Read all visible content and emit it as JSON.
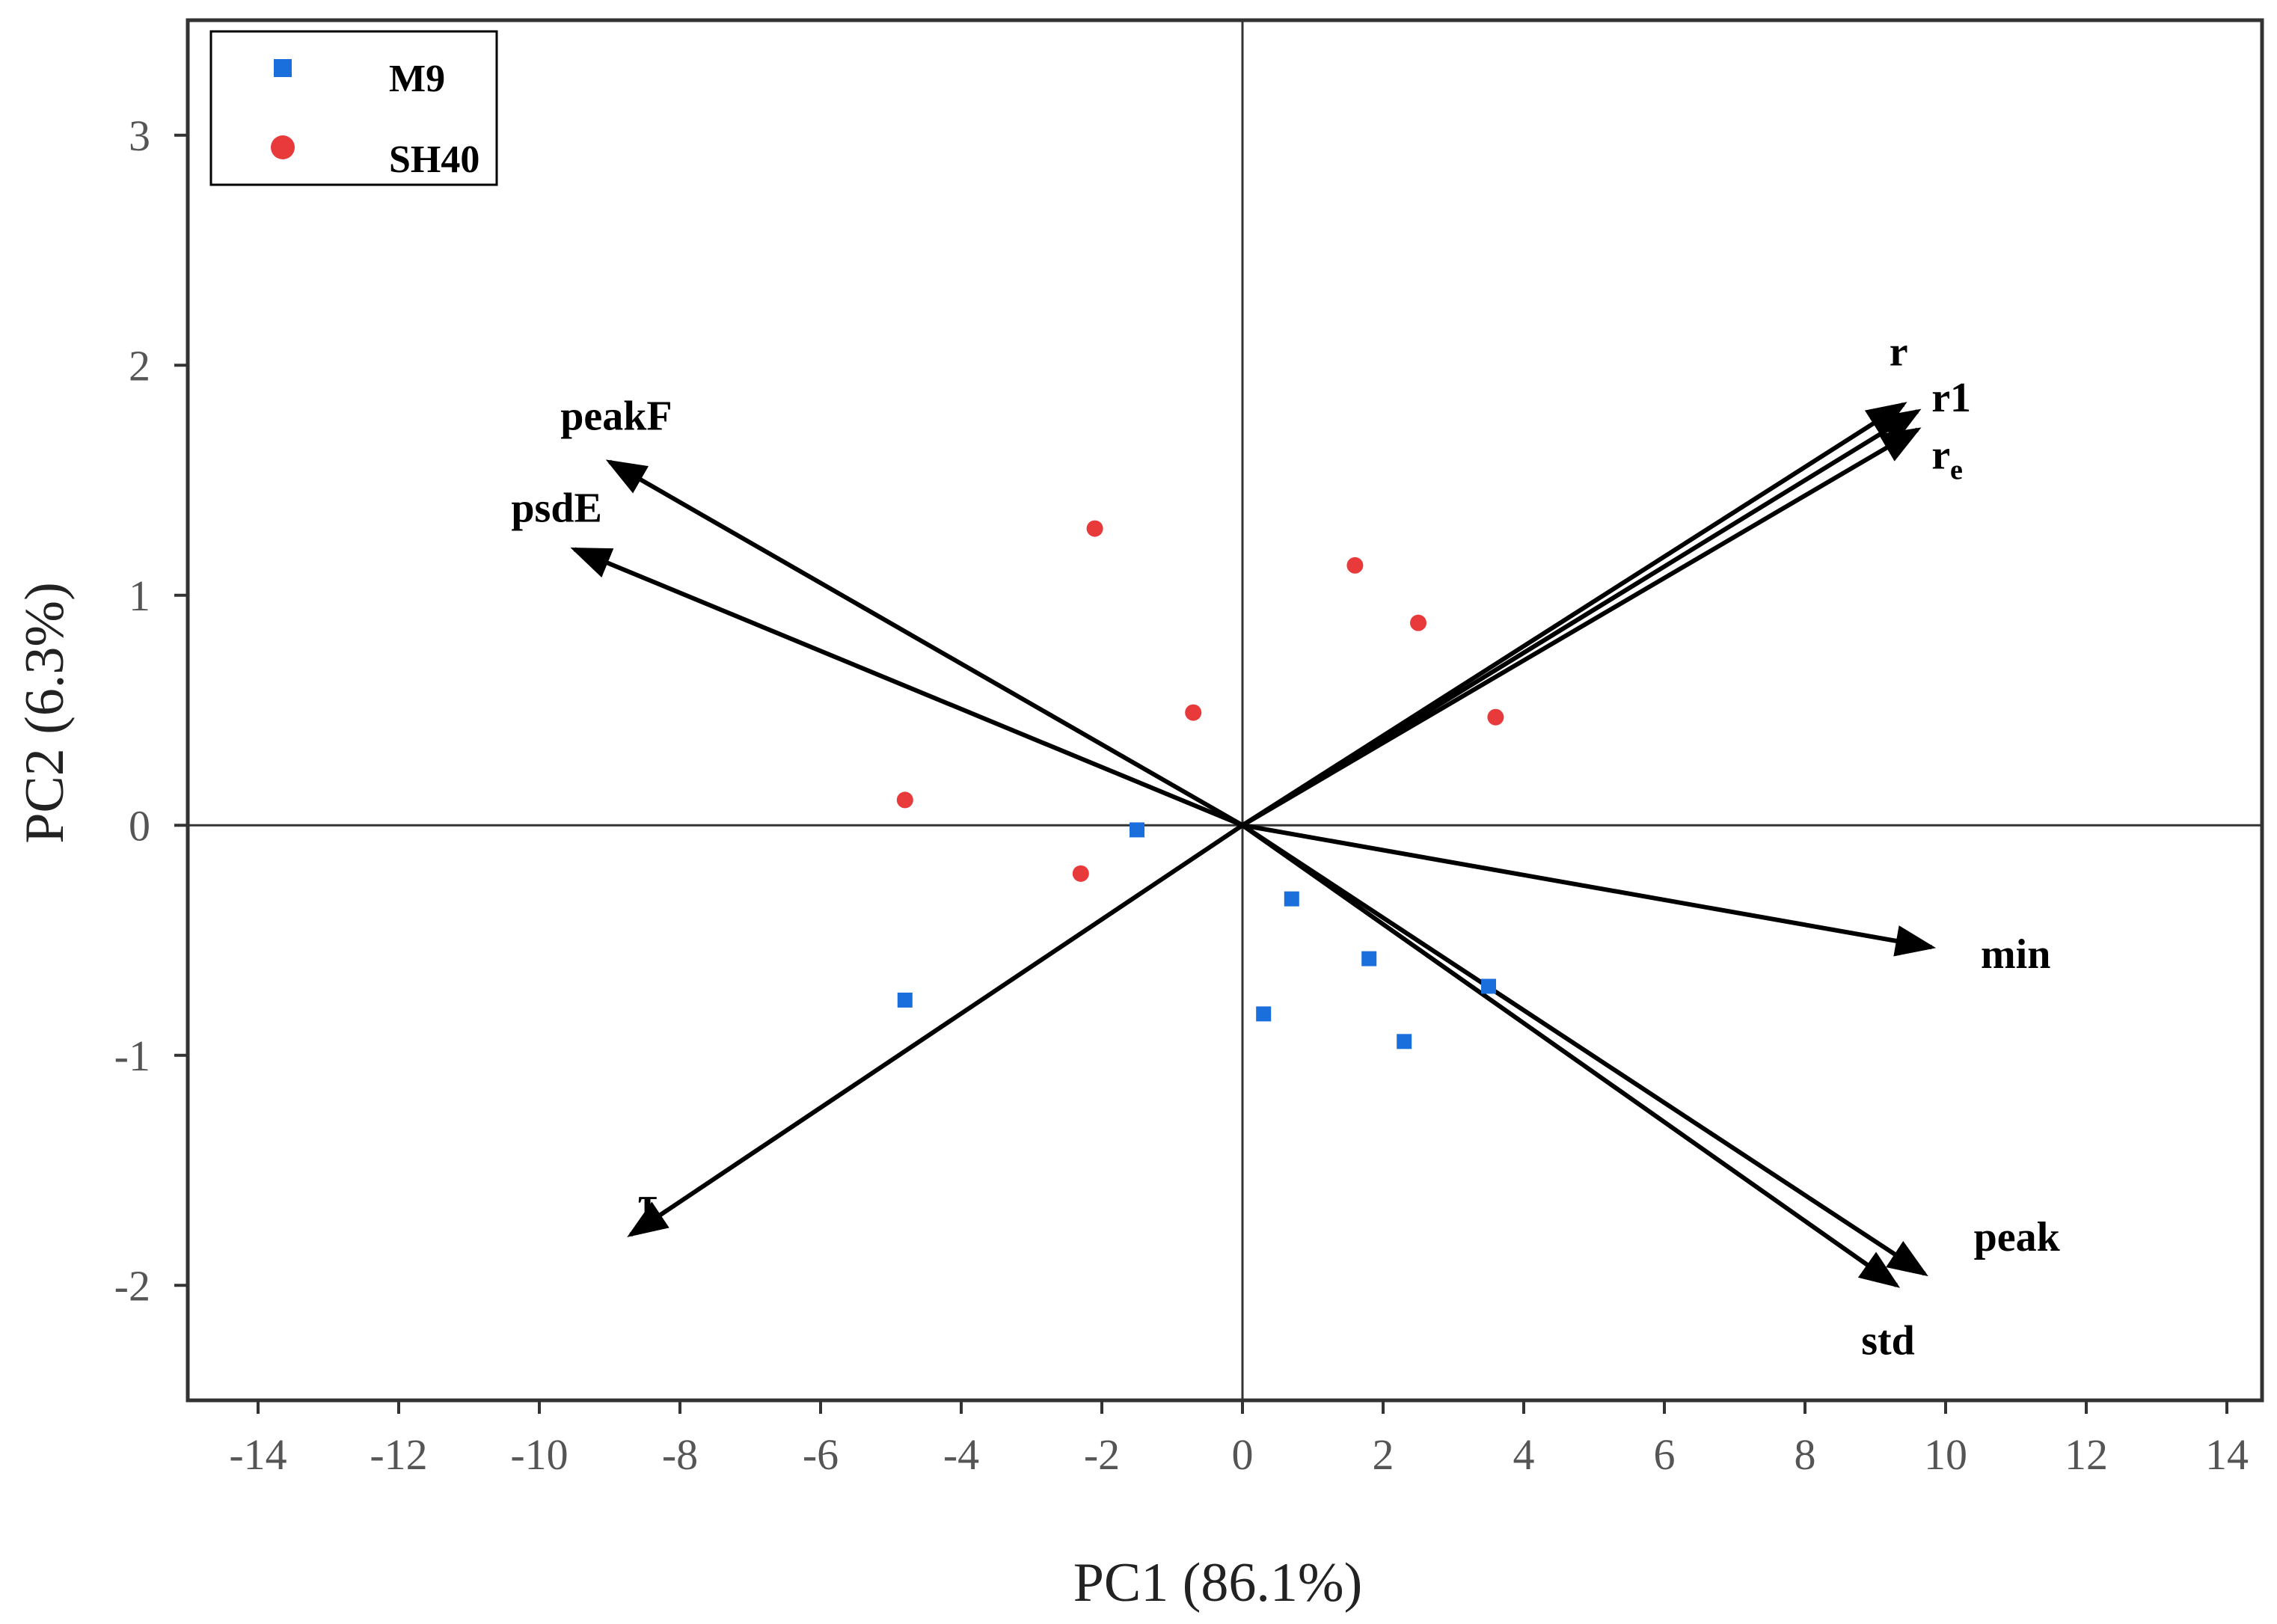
{
  "chart_data": {
    "type": "scatter",
    "subtype": "pca-biplot",
    "xlabel": "PC1 (86.1%)",
    "ylabel": "PC2 (6.3%)",
    "xlim": [
      -15,
      14.5
    ],
    "ylim": [
      -2.5,
      3.5
    ],
    "xticks": [
      -14,
      -12,
      -10,
      -8,
      -6,
      -4,
      -2,
      0,
      2,
      4,
      6,
      8,
      10,
      12,
      14
    ],
    "yticks": [
      -2,
      -1,
      0,
      1,
      2,
      3
    ],
    "legend_position": "top-left",
    "reference_lines": {
      "x": 0,
      "y": 0
    },
    "series": [
      {
        "name": "M9",
        "marker": "square",
        "color": "#1a6fdc",
        "points": [
          {
            "x": -1.5,
            "y": -0.02
          },
          {
            "x": -4.8,
            "y": -0.76
          },
          {
            "x": 0.3,
            "y": -0.82
          },
          {
            "x": 0.7,
            "y": -0.32
          },
          {
            "x": 1.8,
            "y": -0.58
          },
          {
            "x": 2.3,
            "y": -0.94
          },
          {
            "x": 3.5,
            "y": -0.7
          }
        ]
      },
      {
        "name": "SH40",
        "marker": "circle",
        "color": "#e8393b",
        "points": [
          {
            "x": -2.1,
            "y": 1.29
          },
          {
            "x": -0.7,
            "y": 0.49
          },
          {
            "x": -4.8,
            "y": 0.11
          },
          {
            "x": -2.3,
            "y": -0.21
          },
          {
            "x": 1.6,
            "y": 1.13
          },
          {
            "x": 2.5,
            "y": 0.88
          },
          {
            "x": 3.6,
            "y": 0.47
          }
        ]
      }
    ],
    "loadings": [
      {
        "name": "r",
        "subscript": "",
        "x": 9.4,
        "y": 1.83,
        "label_x": 9.2,
        "label_y": 2.0
      },
      {
        "name": "r1",
        "subscript": "",
        "x": 9.6,
        "y": 1.8,
        "label_x": 9.8,
        "label_y": 1.8
      },
      {
        "name": "r",
        "subscript": "e",
        "x": 9.6,
        "y": 1.72,
        "label_x": 9.8,
        "label_y": 1.55
      },
      {
        "name": "peakF",
        "subscript": "",
        "x": -9.0,
        "y": 1.58,
        "label_x": -9.7,
        "label_y": 1.72
      },
      {
        "name": "psdE",
        "subscript": "",
        "x": -9.5,
        "y": 1.2,
        "label_x": -10.4,
        "label_y": 1.32
      },
      {
        "name": "min",
        "subscript": "",
        "x": 9.8,
        "y": -0.53,
        "label_x": 10.5,
        "label_y": -0.62
      },
      {
        "name": "peak",
        "subscript": "",
        "x": 9.7,
        "y": -1.95,
        "label_x": 10.4,
        "label_y": -1.85
      },
      {
        "name": "std",
        "subscript": "",
        "x": 9.3,
        "y": -2.0,
        "label_x": 8.8,
        "label_y": -2.3
      },
      {
        "name": "τ",
        "subscript": "",
        "x": -8.7,
        "y": -1.78,
        "label_x": -8.6,
        "label_y": -1.7
      }
    ]
  }
}
